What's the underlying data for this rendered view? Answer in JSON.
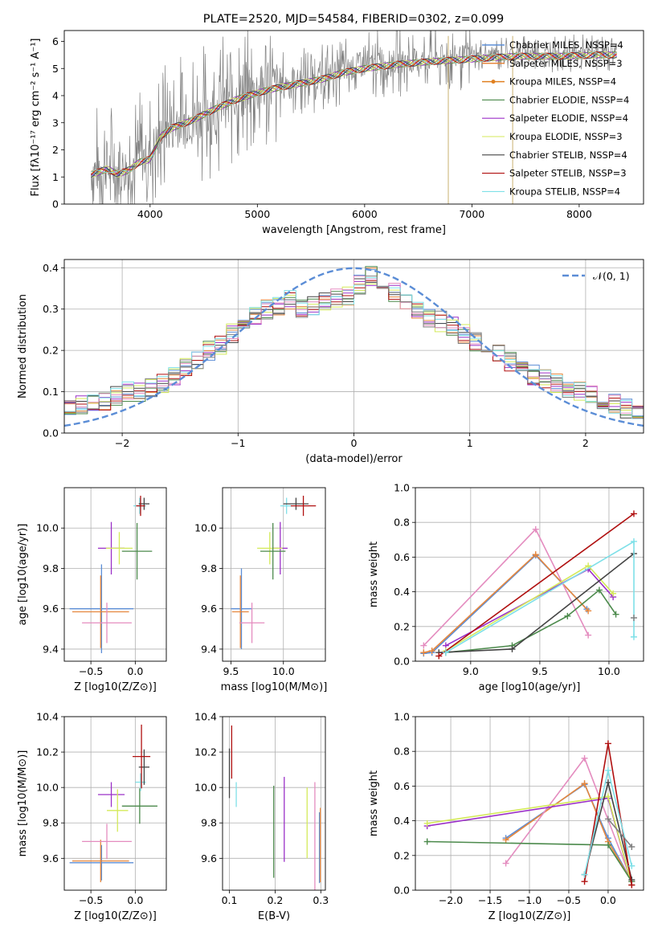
{
  "figure": {
    "title": "PLATE=2520, MJD=54584, FIBERID=0302, z=0.099"
  },
  "chart_data": [
    {
      "id": "spectrum",
      "type": "line",
      "xlabel": "wavelength [Angstrom, rest frame]",
      "ylabel": "Flux [fλ10⁻¹⁷ erg cm⁻² s⁻¹ A⁻¹]",
      "xlim": [
        3200,
        8600
      ],
      "ylim": [
        0,
        6.4
      ],
      "xticks": [
        4000,
        5000,
        6000,
        7000,
        8000
      ],
      "yticks": [
        0,
        1,
        2,
        3,
        4,
        5,
        6
      ],
      "grid": false,
      "legend_position": "right",
      "data_color": "#808080",
      "continuum_x": [
        3450,
        3500,
        3600,
        3700,
        3800,
        3900,
        4000,
        4100,
        4200,
        4400,
        4600,
        4800,
        5000,
        5200,
        5400,
        5600,
        5800,
        6000,
        6300,
        6600,
        7000,
        7400,
        7800,
        8200,
        8350
      ],
      "continuum_y": [
        1.2,
        1.25,
        1.4,
        1.2,
        1.35,
        1.65,
        1.75,
        2.6,
        2.9,
        3.2,
        3.6,
        3.95,
        4.2,
        4.4,
        4.55,
        4.7,
        4.95,
        5.1,
        5.25,
        5.35,
        5.45,
        5.55,
        5.55,
        5.6,
        5.6
      ],
      "series": [
        {
          "name": "Chabrier MILES, NSSP=4",
          "color": "#5b8dd6",
          "lw": 1.2
        },
        {
          "name": "Salpeter MILES, NSSP=3",
          "color": "#e6873d",
          "lw": 1.2
        },
        {
          "name": "Kroupa MILES, NSSP=4",
          "color": "#e08020",
          "lw": 1.2,
          "marker": "dot"
        },
        {
          "name": "Chabrier ELODIE, NSSP=4",
          "color": "#4c8a4c",
          "lw": 0.8
        },
        {
          "name": "Salpeter ELODIE, NSSP=4",
          "color": "#9b30c8",
          "lw": 0.8
        },
        {
          "name": "Kroupa ELODIE, NSSP=3",
          "color": "#d4ea5a",
          "lw": 0.8
        },
        {
          "name": "Chabrier STELIB, NSSP=4",
          "color": "#444444",
          "lw": 0.8
        },
        {
          "name": "Salpeter STELIB, NSSP=3",
          "color": "#b01010",
          "lw": 0.8
        },
        {
          "name": "Kroupa STELIB, NSSP=4",
          "color": "#7fe0e8",
          "lw": 0.8
        }
      ]
    },
    {
      "id": "residuals",
      "type": "step",
      "xlabel": "(data-model)/error",
      "ylabel": "Normed distribution",
      "xlim": [
        -2.5,
        2.5
      ],
      "ylim": [
        0,
        0.42
      ],
      "xticks": [
        -2,
        -1,
        0,
        1,
        2
      ],
      "yticks": [
        0.0,
        0.1,
        0.2,
        0.3,
        0.4
      ],
      "grid": true,
      "legend_position": "top-right",
      "gaussian": {
        "label": "𝒩(0, 1)",
        "color": "#5b8dd6",
        "mean": 0,
        "sigma": 1
      },
      "bin_edges": [
        -2.5,
        -2.4,
        -2.3,
        -2.2,
        -2.1,
        -2.0,
        -1.9,
        -1.8,
        -1.7,
        -1.6,
        -1.5,
        -1.4,
        -1.3,
        -1.2,
        -1.1,
        -1.0,
        -0.9,
        -0.8,
        -0.7,
        -0.6,
        -0.5,
        -0.4,
        -0.3,
        -0.2,
        -0.1,
        0.0,
        0.1,
        0.2,
        0.3,
        0.4,
        0.5,
        0.6,
        0.7,
        0.8,
        0.9,
        1.0,
        1.1,
        1.2,
        1.3,
        1.4,
        1.5,
        1.6,
        1.7,
        1.8,
        1.9,
        2.0,
        2.1,
        2.2,
        2.3,
        2.4,
        2.5
      ],
      "base_hist": [
        0.06,
        0.07,
        0.075,
        0.08,
        0.09,
        0.1,
        0.1,
        0.11,
        0.12,
        0.14,
        0.16,
        0.18,
        0.2,
        0.21,
        0.24,
        0.27,
        0.28,
        0.3,
        0.31,
        0.32,
        0.3,
        0.31,
        0.32,
        0.33,
        0.33,
        0.36,
        0.38,
        0.35,
        0.34,
        0.31,
        0.3,
        0.28,
        0.27,
        0.26,
        0.24,
        0.22,
        0.21,
        0.19,
        0.17,
        0.16,
        0.14,
        0.13,
        0.12,
        0.11,
        0.1,
        0.09,
        0.08,
        0.07,
        0.06,
        0.05
      ],
      "series_colors": [
        "#5b8dd6",
        "#e6873d",
        "#4c8a4c",
        "#9b30c8",
        "#d4ea5a",
        "#444444",
        "#b01010",
        "#e48cbf",
        "#7fe0e8",
        "#808080"
      ]
    },
    {
      "id": "age-vs-Z",
      "type": "errorbar",
      "xlabel": "Z [log10(Z/Z⊙)]",
      "ylabel": "age  [log10(age/yr)]",
      "xlim": [
        -0.8,
        0.35
      ],
      "ylim": [
        9.34,
        10.2
      ],
      "xticks": [
        -0.5,
        0.0
      ],
      "yticks": [
        9.4,
        9.6,
        9.8,
        10.0
      ],
      "grid": true,
      "points": [
        {
          "color": "#5b8dd6",
          "x": -0.38,
          "y": 9.6,
          "xerr": 0.36,
          "yerr": 0.22
        },
        {
          "color": "#e6873d",
          "x": -0.39,
          "y": 9.585,
          "xerr": 0.32,
          "yerr": 0.18
        },
        {
          "color": "#e48cbf",
          "x": -0.32,
          "y": 9.53,
          "xerr": 0.28,
          "yerr": 0.1
        },
        {
          "color": "#9b30c8",
          "x": -0.27,
          "y": 9.9,
          "xerr": 0.15,
          "yerr": 0.13
        },
        {
          "color": "#d4ea5a",
          "x": -0.18,
          "y": 9.9,
          "xerr": 0.15,
          "yerr": 0.08
        },
        {
          "color": "#4c8a4c",
          "x": 0.02,
          "y": 9.885,
          "xerr": 0.17,
          "yerr": 0.14
        },
        {
          "color": "#7fe0e8",
          "x": 0.05,
          "y": 10.11,
          "xerr": 0.07,
          "yerr": 0.04
        },
        {
          "color": "#444444",
          "x": 0.1,
          "y": 10.12,
          "xerr": 0.06,
          "yerr": 0.03
        },
        {
          "color": "#b01010",
          "x": 0.06,
          "y": 10.11,
          "xerr": 0.05,
          "yerr": 0.05
        }
      ]
    },
    {
      "id": "age-vs-mass",
      "type": "errorbar",
      "xlabel": "mass [log10(M/M⊙)]",
      "ylabel": "",
      "xlim": [
        9.42,
        10.4
      ],
      "ylim": [
        9.34,
        10.2
      ],
      "xticks": [
        9.5,
        10.0
      ],
      "yticks": [
        9.4,
        9.6,
        9.8,
        10.0
      ],
      "grid": true,
      "points": [
        {
          "color": "#5b8dd6",
          "x": 9.6,
          "y": 9.6,
          "xerr": 0.1,
          "yerr": 0.2
        },
        {
          "color": "#e6873d",
          "x": 9.59,
          "y": 9.585,
          "xerr": 0.08,
          "yerr": 0.18
        },
        {
          "color": "#e48cbf",
          "x": 9.7,
          "y": 9.53,
          "xerr": 0.12,
          "yerr": 0.1
        },
        {
          "color": "#9b30c8",
          "x": 9.97,
          "y": 9.9,
          "xerr": 0.07,
          "yerr": 0.13
        },
        {
          "color": "#d4ea5a",
          "x": 9.87,
          "y": 9.9,
          "xerr": 0.12,
          "yerr": 0.08
        },
        {
          "color": "#4c8a4c",
          "x": 9.9,
          "y": 9.885,
          "xerr": 0.12,
          "yerr": 0.14
        },
        {
          "color": "#7fe0e8",
          "x": 10.03,
          "y": 10.11,
          "xerr": 0.06,
          "yerr": 0.04
        },
        {
          "color": "#444444",
          "x": 10.12,
          "y": 10.12,
          "xerr": 0.12,
          "yerr": 0.03
        },
        {
          "color": "#b01010",
          "x": 10.19,
          "y": 10.11,
          "xerr": 0.12,
          "yerr": 0.05
        }
      ]
    },
    {
      "id": "massweight-vs-age",
      "type": "line",
      "xlabel": "age  [log10(age/yr)]",
      "ylabel": "mass weight",
      "xlim": [
        8.6,
        10.25
      ],
      "ylim": [
        0,
        1.0
      ],
      "xticks": [
        9.0,
        9.5,
        10.0
      ],
      "yticks": [
        0.0,
        0.2,
        0.4,
        0.6,
        0.8,
        1.0
      ],
      "grid": true,
      "series": [
        {
          "color": "#5b8dd6",
          "x": [
            8.66,
            8.72,
            9.47,
            9.84
          ],
          "y": [
            0.045,
            0.05,
            0.61,
            0.3
          ]
        },
        {
          "color": "#e6873d",
          "x": [
            8.66,
            8.72,
            9.47,
            9.85
          ],
          "y": [
            0.05,
            0.06,
            0.615,
            0.29
          ]
        },
        {
          "color": "#e48cbf",
          "x": [
            8.66,
            9.47,
            9.85
          ],
          "y": [
            0.09,
            0.76,
            0.15
          ]
        },
        {
          "color": "#9b30c8",
          "x": [
            8.82,
            9.85,
            10.03
          ],
          "y": [
            0.09,
            0.53,
            0.37
          ]
        },
        {
          "color": "#d4ea5a",
          "x": [
            8.82,
            9.85,
            10.03
          ],
          "y": [
            0.06,
            0.55,
            0.39
          ]
        },
        {
          "color": "#4c8a4c",
          "x": [
            8.82,
            9.3,
            9.7,
            9.93,
            10.05
          ],
          "y": [
            0.05,
            0.09,
            0.26,
            0.41,
            0.27
          ]
        },
        {
          "color": "#444444",
          "x": [
            8.77,
            9.3,
            10.18
          ],
          "y": [
            0.05,
            0.07,
            0.62
          ]
        },
        {
          "color": "#b01010",
          "x": [
            8.77,
            10.18
          ],
          "y": [
            0.03,
            0.85
          ]
        },
        {
          "color": "#7fe0e8",
          "x": [
            8.82,
            10.18,
            10.18
          ],
          "y": [
            0.05,
            0.69,
            0.14
          ]
        },
        {
          "color": "#808080",
          "x": [
            10.18
          ],
          "y": [
            0.25
          ]
        }
      ]
    },
    {
      "id": "mass-vs-Z",
      "type": "errorbar",
      "xlabel": "Z [log10(Z/Z⊙)]",
      "ylabel": "mass [log10(M/M⊙)]",
      "xlim": [
        -0.8,
        0.35
      ],
      "ylim": [
        9.42,
        10.4
      ],
      "xticks": [
        -0.5,
        0.0
      ],
      "yticks": [
        9.6,
        9.8,
        10.0,
        10.2,
        10.4
      ],
      "grid": true,
      "points": [
        {
          "color": "#5b8dd6",
          "x": -0.38,
          "y": 9.575,
          "xerr": 0.36,
          "yerr": 0.1
        },
        {
          "color": "#e6873d",
          "x": -0.39,
          "y": 9.585,
          "xerr": 0.32,
          "yerr": 0.12
        },
        {
          "color": "#e48cbf",
          "x": -0.32,
          "y": 9.695,
          "xerr": 0.28,
          "yerr": 0.1
        },
        {
          "color": "#9b30c8",
          "x": -0.27,
          "y": 9.96,
          "xerr": 0.15,
          "yerr": 0.07
        },
        {
          "color": "#d4ea5a",
          "x": -0.2,
          "y": 9.87,
          "xerr": 0.12,
          "yerr": 0.12
        },
        {
          "color": "#4c8a4c",
          "x": 0.05,
          "y": 9.895,
          "xerr": 0.2,
          "yerr": 0.1
        },
        {
          "color": "#7fe0e8",
          "x": 0.06,
          "y": 10.03,
          "xerr": 0.06,
          "yerr": 0.05
        },
        {
          "color": "#444444",
          "x": 0.1,
          "y": 10.115,
          "xerr": 0.06,
          "yerr": 0.1
        },
        {
          "color": "#b01010",
          "x": 0.07,
          "y": 10.175,
          "xerr": 0.1,
          "yerr": 0.18
        }
      ]
    },
    {
      "id": "mass-vs-EBV",
      "type": "errorbar",
      "xlabel": "E(B-V)",
      "ylabel": "",
      "xlim": [
        0.085,
        0.31
      ],
      "ylim": [
        9.42,
        10.4
      ],
      "xticks": [
        0.1,
        0.2,
        0.3
      ],
      "yticks": [
        9.6,
        9.8,
        10.0,
        10.2,
        10.4
      ],
      "grid": true,
      "points": [
        {
          "color": "#444444",
          "x": 0.1,
          "y": 10.08,
          "yerr": 0.14
        },
        {
          "color": "#b01010",
          "x": 0.105,
          "y": 10.2,
          "yerr": 0.15
        },
        {
          "color": "#7fe0e8",
          "x": 0.115,
          "y": 9.96,
          "yerr": 0.07
        },
        {
          "color": "#4c8a4c",
          "x": 0.197,
          "y": 9.75,
          "yerr": 0.26
        },
        {
          "color": "#9b30c8",
          "x": 0.22,
          "y": 9.82,
          "yerr": 0.24
        },
        {
          "color": "#d4ea5a",
          "x": 0.27,
          "y": 9.8,
          "yerr": 0.2
        },
        {
          "color": "#e48cbf",
          "x": 0.287,
          "y": 9.7,
          "yerr": 0.33
        },
        {
          "color": "#5b8dd6",
          "x": 0.297,
          "y": 9.66,
          "yerr": 0.2
        },
        {
          "color": "#e6873d",
          "x": 0.299,
          "y": 9.675,
          "yerr": 0.21
        }
      ]
    },
    {
      "id": "massweight-vs-Z",
      "type": "line",
      "xlabel": "Z [log10(Z/Z⊙)]",
      "ylabel": "mass weight",
      "xlim": [
        -2.45,
        0.45
      ],
      "ylim": [
        0,
        1.0
      ],
      "xticks": [
        -2.0,
        -1.5,
        -1.0,
        -0.5,
        0.0
      ],
      "yticks": [
        0.0,
        0.2,
        0.4,
        0.6,
        0.8,
        1.0
      ],
      "grid": true,
      "series": [
        {
          "color": "#5b8dd6",
          "x": [
            -1.3,
            -0.3,
            0.0,
            0.3
          ],
          "y": [
            0.3,
            0.61,
            0.3,
            0.05
          ]
        },
        {
          "color": "#e6873d",
          "x": [
            -1.3,
            -0.3,
            0.0,
            0.3
          ],
          "y": [
            0.29,
            0.615,
            0.28,
            0.05
          ]
        },
        {
          "color": "#e48cbf",
          "x": [
            -1.3,
            -0.3,
            0.3
          ],
          "y": [
            0.155,
            0.76,
            0.05
          ]
        },
        {
          "color": "#9b30c8",
          "x": [
            -2.3,
            0.0,
            0.3
          ],
          "y": [
            0.37,
            0.53,
            0.03
          ]
        },
        {
          "color": "#d4ea5a",
          "x": [
            -2.3,
            0.0,
            0.3
          ],
          "y": [
            0.385,
            0.54,
            0.03
          ]
        },
        {
          "color": "#4c8a4c",
          "x": [
            -2.3,
            0.0,
            0.3
          ],
          "y": [
            0.28,
            0.26,
            0.05
          ]
        },
        {
          "color": "#444444",
          "x": [
            -0.3,
            0.0,
            0.3
          ],
          "y": [
            0.09,
            0.62,
            0.06
          ]
        },
        {
          "color": "#b01010",
          "x": [
            -0.3,
            0.0,
            0.3
          ],
          "y": [
            0.05,
            0.845,
            0.03
          ]
        },
        {
          "color": "#7fe0e8",
          "x": [
            -0.3,
            0.0,
            0.3
          ],
          "y": [
            0.09,
            0.69,
            0.14
          ]
        },
        {
          "color": "#808080",
          "x": [
            0.0,
            0.3
          ],
          "y": [
            0.41,
            0.25
          ]
        }
      ]
    }
  ]
}
